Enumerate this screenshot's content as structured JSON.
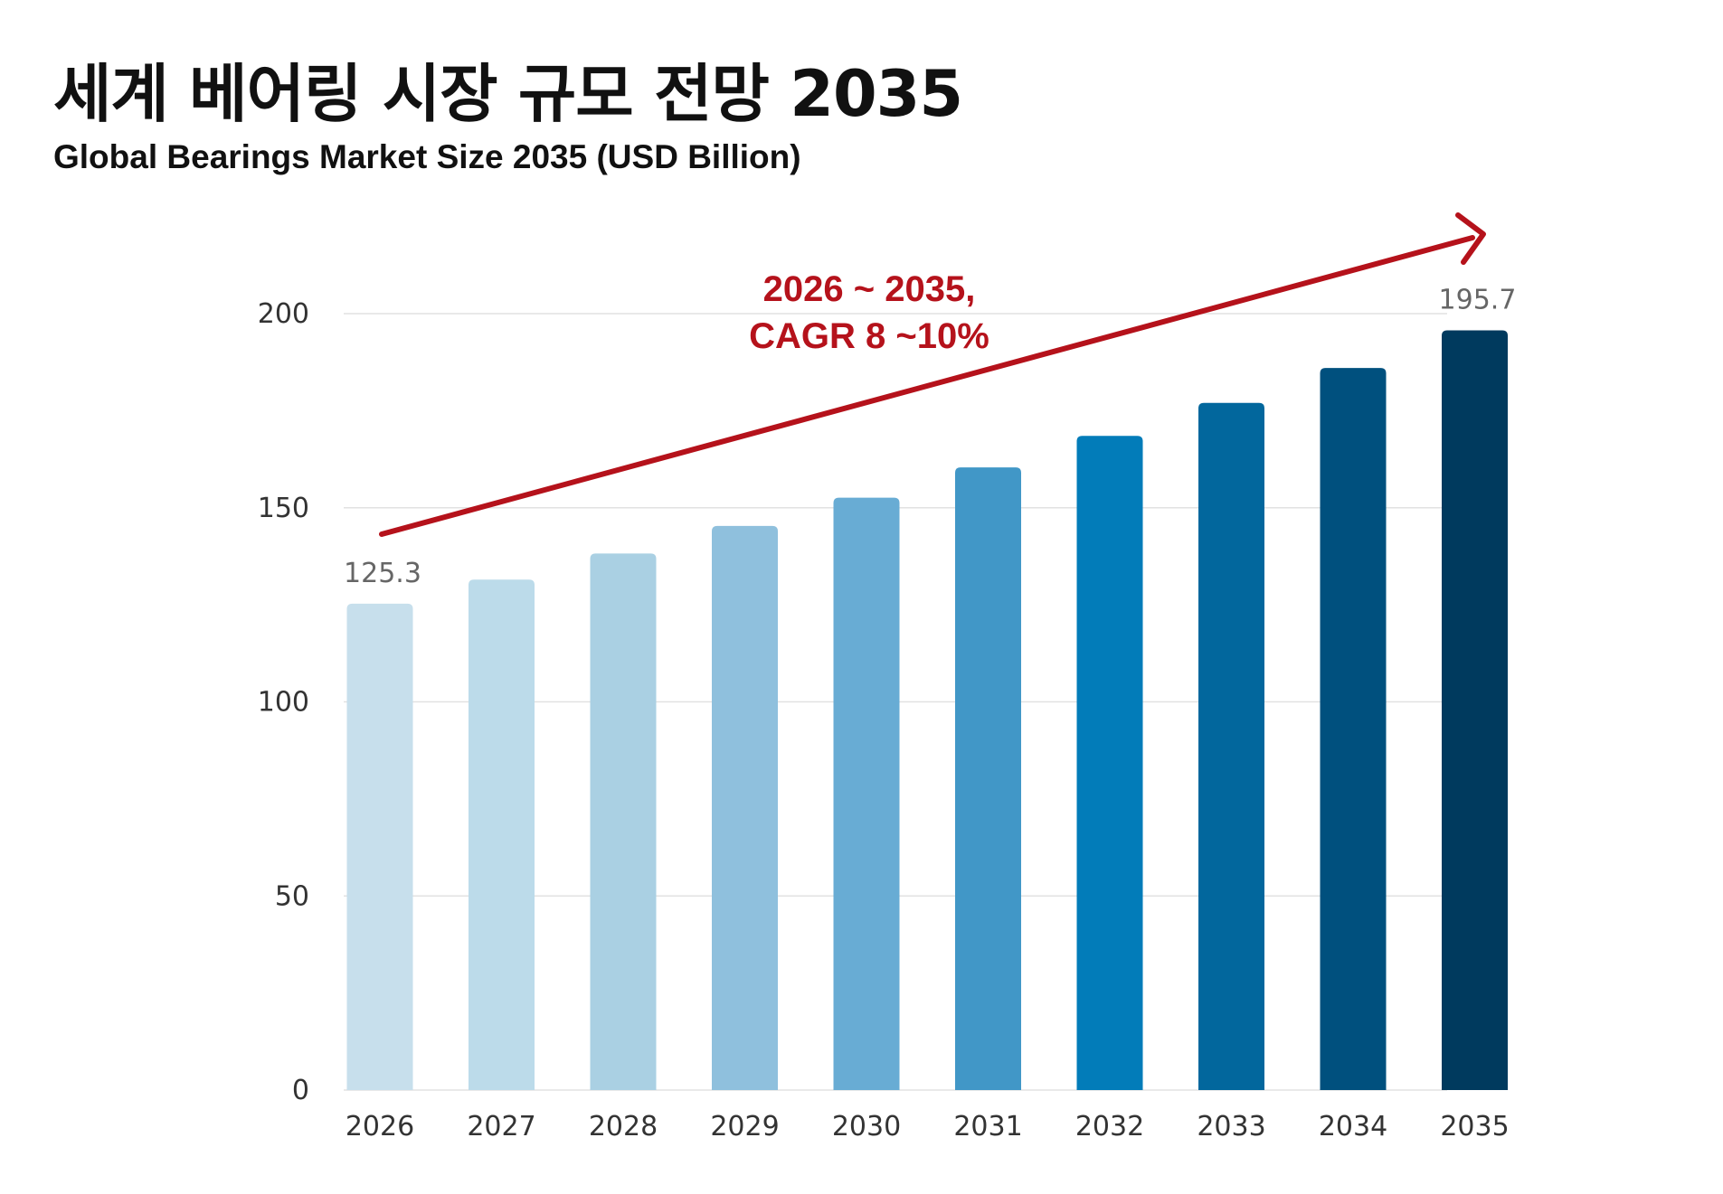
{
  "title": "세계 베어링 시장 규모 전망 2035",
  "subtitle": "Global Bearings Market Size 2035 (USD Billion)",
  "colors": {
    "annotation": "#b5121b",
    "grid": "#e2e2e2",
    "bars": [
      "#c7dfec",
      "#bcdbea",
      "#aad0e3",
      "#8fc0dd",
      "#68acd4",
      "#4197c7",
      "#027cb9",
      "#02679d",
      "#00507e",
      "#003a5e"
    ]
  },
  "chart_data": {
    "type": "bar",
    "categories": [
      "2026",
      "2027",
      "2028",
      "2029",
      "2030",
      "2031",
      "2032",
      "2033",
      "2034",
      "2035"
    ],
    "values": [
      125.3,
      131.5,
      138.2,
      145.3,
      152.6,
      160.4,
      168.5,
      177.0,
      186.0,
      195.7
    ],
    "data_labels": [
      {
        "category": "2026",
        "text": "125.3"
      },
      {
        "category": "2035",
        "text": "195.7"
      }
    ],
    "y_ticks": [
      "0",
      "50",
      "100",
      "150",
      "200"
    ],
    "ylim": [
      0,
      200
    ],
    "grid": true,
    "annotation": {
      "lines": [
        "2026 ~ 2035,",
        "CAGR 8 ~10%"
      ],
      "arrow": true
    }
  }
}
